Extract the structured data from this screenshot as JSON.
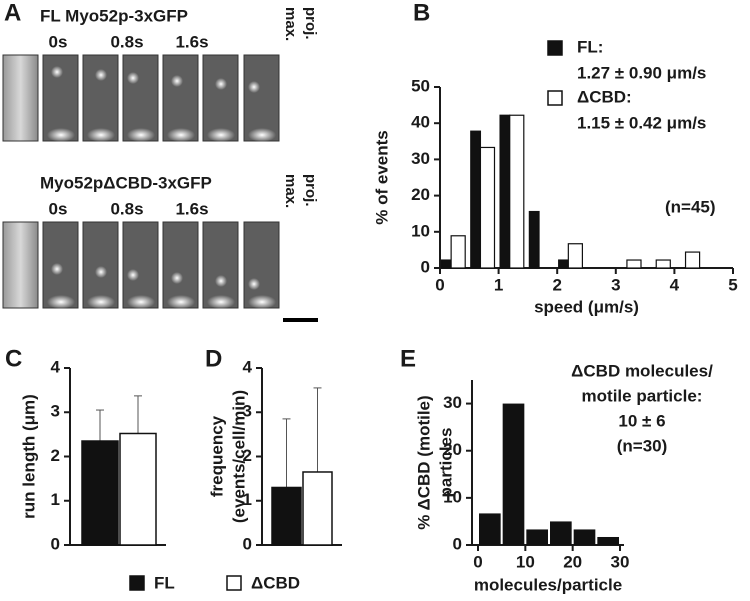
{
  "panel_a": {
    "label": "A",
    "rows": [
      {
        "title": "FL Myo52p-3xGFP",
        "times": [
          "0s",
          "0.8s",
          "1.6s"
        ],
        "projection": [
          "max.",
          "proj."
        ]
      },
      {
        "title": "Myo52pΔCBD-3xGFP",
        "times": [
          "0s",
          "0.8s",
          "1.6s"
        ],
        "projection": [
          "max.",
          "proj."
        ]
      }
    ]
  },
  "chart_data": [
    {
      "type": "bar",
      "panel_label": "B",
      "ylabel": "% of events",
      "xlabel": "speed (μm/s)",
      "x": [
        0.25,
        0.75,
        1.25,
        1.75,
        2.25,
        2.75,
        3.25,
        3.75,
        4.25,
        4.75
      ],
      "series": [
        {
          "name": "FL:",
          "summary": "1.27 ± 0.90 μm/s",
          "color": "#111111",
          "values": [
            2.2,
            37.8,
            42.2,
            15.6,
            2.2,
            0,
            0,
            0,
            0,
            0
          ]
        },
        {
          "name": "ΔCBD:",
          "summary": "1.15 ± 0.42 μm/s",
          "color": "#ffffff",
          "values": [
            8.9,
            33.3,
            42.2,
            0,
            6.7,
            0,
            2.2,
            2.2,
            4.4,
            0
          ]
        }
      ],
      "xlim": [
        0,
        5
      ],
      "xticks": [
        0,
        1,
        2,
        3,
        4,
        5
      ],
      "ylim": [
        0,
        50
      ],
      "yticks": [
        0,
        10,
        20,
        30,
        40,
        50
      ],
      "annotation": "(n=45)"
    },
    {
      "type": "bar",
      "panel_label": "C",
      "ylabel": "run length (μm)",
      "series": [
        {
          "name": "FL",
          "color": "#111111",
          "values": [
            2.35
          ],
          "errors": [
            0.7
          ]
        },
        {
          "name": "ΔCBD",
          "color": "#ffffff",
          "values": [
            2.52
          ],
          "errors": [
            0.85
          ]
        }
      ],
      "ylim": [
        0,
        4
      ],
      "yticks": [
        0,
        1,
        2,
        3,
        4
      ]
    },
    {
      "type": "bar",
      "panel_label": "D",
      "ylabel": [
        "frequency",
        "(events/cell/min)"
      ],
      "series": [
        {
          "color": "#111111",
          "values": [
            1.3
          ],
          "errors": [
            1.55
          ]
        },
        {
          "color": "#ffffff",
          "values": [
            1.65
          ],
          "errors": [
            1.9
          ]
        }
      ],
      "ylim": [
        0,
        4
      ],
      "yticks": [
        0,
        1,
        2,
        3,
        4
      ]
    },
    {
      "type": "histogram",
      "panel_label": "E",
      "ylabel": [
        "% ΔCBD (motile)",
        "particles"
      ],
      "xlabel": "molecules/particle",
      "bins": [
        0,
        5,
        10,
        15,
        20,
        25,
        30
      ],
      "values": [
        6.7,
        30,
        3.3,
        5,
        3.3,
        1.7
      ],
      "color": "#111111",
      "xlim": [
        0,
        30
      ],
      "xticks": [
        0,
        10,
        20,
        30
      ],
      "ylim": [
        0,
        35
      ],
      "yticks": [
        0,
        10,
        20,
        30
      ],
      "annotation": [
        "ΔCBD molecules/",
        "motile particle:",
        "10 ± 6",
        "(n=30)"
      ]
    }
  ]
}
